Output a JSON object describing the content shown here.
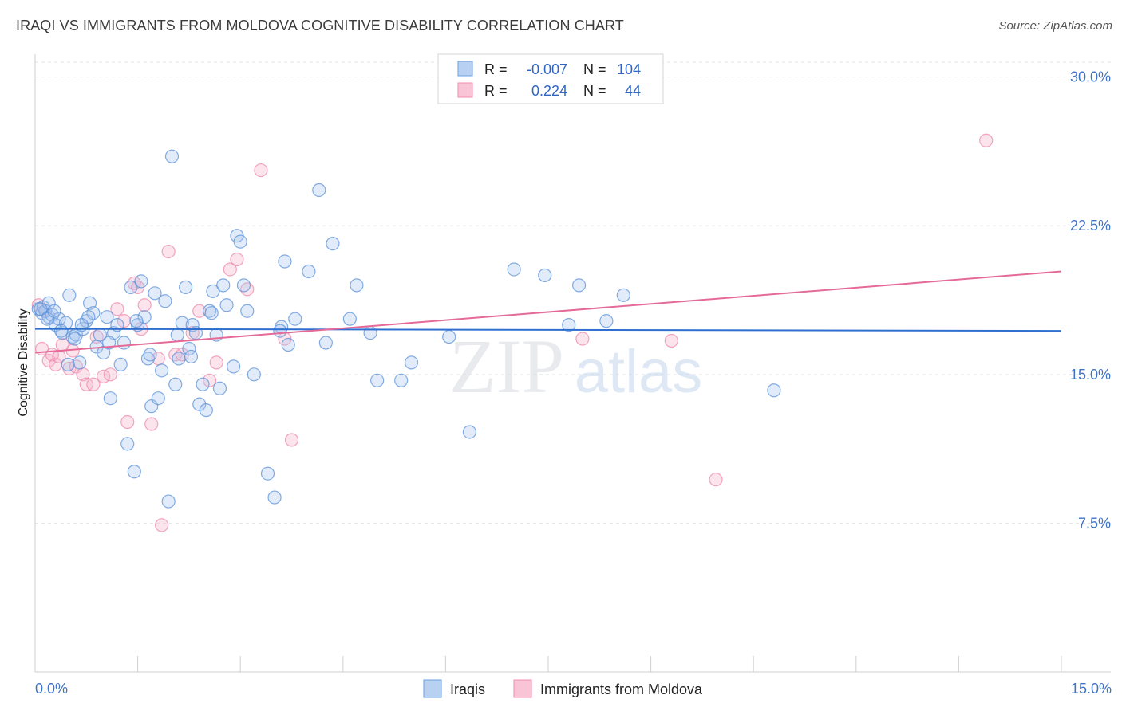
{
  "title": "IRAQI VS IMMIGRANTS FROM MOLDOVA COGNITIVE DISABILITY CORRELATION CHART",
  "source": "Source: ZipAtlas.com",
  "colors": {
    "blue": "#6a9fe0",
    "pink": "#f08db0",
    "blue_line": "#2f6fd0",
    "pink_line": "#e56a98",
    "tick_text": "#3f74c4"
  },
  "chart_data": {
    "type": "scatter",
    "title": "IRAQI VS IMMIGRANTS FROM MOLDOVA COGNITIVE DISABILITY CORRELATION CHART",
    "xlabel": "",
    "ylabel": "Cognitive Disability",
    "xlim": [
      0,
      15
    ],
    "ylim": [
      0,
      30.75
    ],
    "x_ticks": [
      "0.0%",
      "15.0%"
    ],
    "y_ticks": [
      {
        "value": 7.5,
        "label": "7.5%"
      },
      {
        "value": 15.0,
        "label": "15.0%"
      },
      {
        "value": 22.5,
        "label": "22.5%"
      },
      {
        "value": 30.0,
        "label": "30.0%"
      }
    ],
    "grid": true,
    "watermark": "ZIPatlas",
    "legend_position": "top-center",
    "stats": [
      {
        "r_label": "R =",
        "r": "-0.007",
        "n_label": "N =",
        "n": "104"
      },
      {
        "r_label": "R =",
        "r": "0.224",
        "n_label": "N =",
        "n": "44"
      }
    ],
    "series": [
      {
        "name": "Iraqis",
        "color": "#6a9fe0",
        "trend": [
          [
            0,
            17.3
          ],
          [
            15,
            17.2
          ]
        ],
        "points": [
          [
            0.05,
            18.3
          ],
          [
            0.1,
            18.1
          ],
          [
            0.12,
            18.4
          ],
          [
            0.15,
            18.2
          ],
          [
            0.2,
            18.6
          ],
          [
            0.2,
            17.9
          ],
          [
            0.25,
            18.0
          ],
          [
            0.3,
            17.5
          ],
          [
            0.35,
            17.8
          ],
          [
            0.4,
            17.1
          ],
          [
            0.45,
            17.6
          ],
          [
            0.5,
            19.0
          ],
          [
            0.55,
            16.9
          ],
          [
            0.6,
            17.0
          ],
          [
            0.65,
            15.6
          ],
          [
            0.7,
            17.3
          ],
          [
            0.75,
            17.7
          ],
          [
            0.8,
            18.6
          ],
          [
            0.85,
            18.1
          ],
          [
            0.9,
            16.4
          ],
          [
            0.95,
            17.0
          ],
          [
            1.0,
            16.1
          ],
          [
            1.05,
            17.9
          ],
          [
            1.1,
            13.8
          ],
          [
            1.15,
            17.1
          ],
          [
            1.2,
            17.5
          ],
          [
            1.25,
            15.5
          ],
          [
            1.3,
            16.6
          ],
          [
            1.35,
            11.5
          ],
          [
            1.4,
            19.4
          ],
          [
            1.45,
            10.1
          ],
          [
            1.5,
            17.5
          ],
          [
            1.55,
            19.7
          ],
          [
            1.6,
            17.9
          ],
          [
            1.65,
            15.8
          ],
          [
            1.7,
            13.4
          ],
          [
            1.75,
            19.1
          ],
          [
            1.8,
            13.8
          ],
          [
            1.85,
            15.2
          ],
          [
            1.9,
            18.7
          ],
          [
            1.95,
            8.6
          ],
          [
            2.0,
            26.0
          ],
          [
            2.05,
            14.5
          ],
          [
            2.1,
            15.8
          ],
          [
            2.15,
            17.6
          ],
          [
            2.2,
            19.4
          ],
          [
            2.25,
            16.3
          ],
          [
            2.3,
            17.5
          ],
          [
            2.35,
            17.1
          ],
          [
            2.4,
            13.5
          ],
          [
            2.45,
            14.5
          ],
          [
            2.5,
            13.2
          ],
          [
            2.55,
            18.2
          ],
          [
            2.6,
            19.2
          ],
          [
            2.65,
            17.0
          ],
          [
            2.7,
            14.3
          ],
          [
            2.75,
            19.5
          ],
          [
            2.8,
            18.5
          ],
          [
            2.9,
            15.4
          ],
          [
            2.95,
            22.0
          ],
          [
            3.0,
            21.7
          ],
          [
            3.05,
            19.5
          ],
          [
            3.1,
            18.2
          ],
          [
            3.2,
            15.0
          ],
          [
            3.4,
            10.0
          ],
          [
            3.5,
            8.8
          ],
          [
            3.6,
            17.4
          ],
          [
            3.65,
            20.7
          ],
          [
            3.7,
            16.5
          ],
          [
            3.8,
            17.8
          ],
          [
            4.0,
            20.2
          ],
          [
            4.15,
            24.3
          ],
          [
            4.25,
            16.6
          ],
          [
            4.35,
            21.6
          ],
          [
            4.6,
            17.8
          ],
          [
            4.7,
            19.5
          ],
          [
            4.9,
            17.1
          ],
          [
            5.0,
            14.7
          ],
          [
            5.35,
            14.7
          ],
          [
            5.5,
            15.6
          ],
          [
            6.05,
            16.9
          ],
          [
            6.35,
            12.1
          ],
          [
            7.0,
            20.3
          ],
          [
            7.45,
            20.0
          ],
          [
            7.8,
            17.5
          ],
          [
            7.95,
            19.5
          ],
          [
            8.35,
            17.7
          ],
          [
            8.6,
            19.0
          ],
          [
            10.8,
            14.2
          ],
          [
            0.08,
            18.3
          ],
          [
            0.18,
            17.8
          ],
          [
            0.28,
            18.2
          ],
          [
            0.38,
            17.2
          ],
          [
            0.58,
            16.8
          ],
          [
            0.78,
            17.9
          ],
          [
            1.08,
            16.6
          ],
          [
            1.48,
            17.7
          ],
          [
            2.08,
            17.0
          ],
          [
            2.58,
            18.1
          ],
          [
            3.58,
            17.2
          ],
          [
            0.48,
            15.5
          ],
          [
            1.68,
            16.0
          ],
          [
            2.28,
            15.9
          ],
          [
            0.68,
            17.5
          ]
        ]
      },
      {
        "name": "Immigrants from Moldova",
        "color": "#f08db0",
        "trend": [
          [
            0,
            16.1
          ],
          [
            15,
            20.2
          ]
        ],
        "points": [
          [
            0.05,
            18.5
          ],
          [
            0.1,
            16.3
          ],
          [
            0.15,
            18.2
          ],
          [
            0.2,
            15.7
          ],
          [
            0.25,
            16.0
          ],
          [
            0.3,
            15.5
          ],
          [
            0.35,
            15.9
          ],
          [
            0.4,
            16.5
          ],
          [
            0.5,
            15.3
          ],
          [
            0.55,
            16.2
          ],
          [
            0.6,
            15.4
          ],
          [
            0.7,
            15.0
          ],
          [
            0.75,
            14.5
          ],
          [
            0.85,
            14.5
          ],
          [
            0.9,
            16.9
          ],
          [
            1.0,
            14.9
          ],
          [
            1.1,
            15.0
          ],
          [
            1.2,
            18.3
          ],
          [
            1.3,
            17.7
          ],
          [
            1.35,
            12.6
          ],
          [
            1.45,
            19.6
          ],
          [
            1.5,
            19.4
          ],
          [
            1.55,
            17.3
          ],
          [
            1.6,
            18.5
          ],
          [
            1.7,
            12.5
          ],
          [
            1.8,
            15.8
          ],
          [
            1.85,
            7.4
          ],
          [
            1.95,
            21.2
          ],
          [
            2.05,
            16.0
          ],
          [
            2.15,
            16.0
          ],
          [
            2.3,
            17.1
          ],
          [
            2.4,
            18.2
          ],
          [
            2.55,
            14.7
          ],
          [
            2.65,
            15.6
          ],
          [
            2.85,
            20.3
          ],
          [
            2.95,
            20.8
          ],
          [
            3.1,
            19.3
          ],
          [
            3.3,
            25.3
          ],
          [
            3.65,
            16.8
          ],
          [
            3.75,
            11.7
          ],
          [
            8.0,
            16.8
          ],
          [
            9.3,
            16.7
          ],
          [
            9.95,
            9.7
          ],
          [
            13.9,
            26.8
          ]
        ]
      }
    ]
  },
  "legend": {
    "series_a": "Iraqis",
    "series_b": "Immigrants from Moldova"
  }
}
